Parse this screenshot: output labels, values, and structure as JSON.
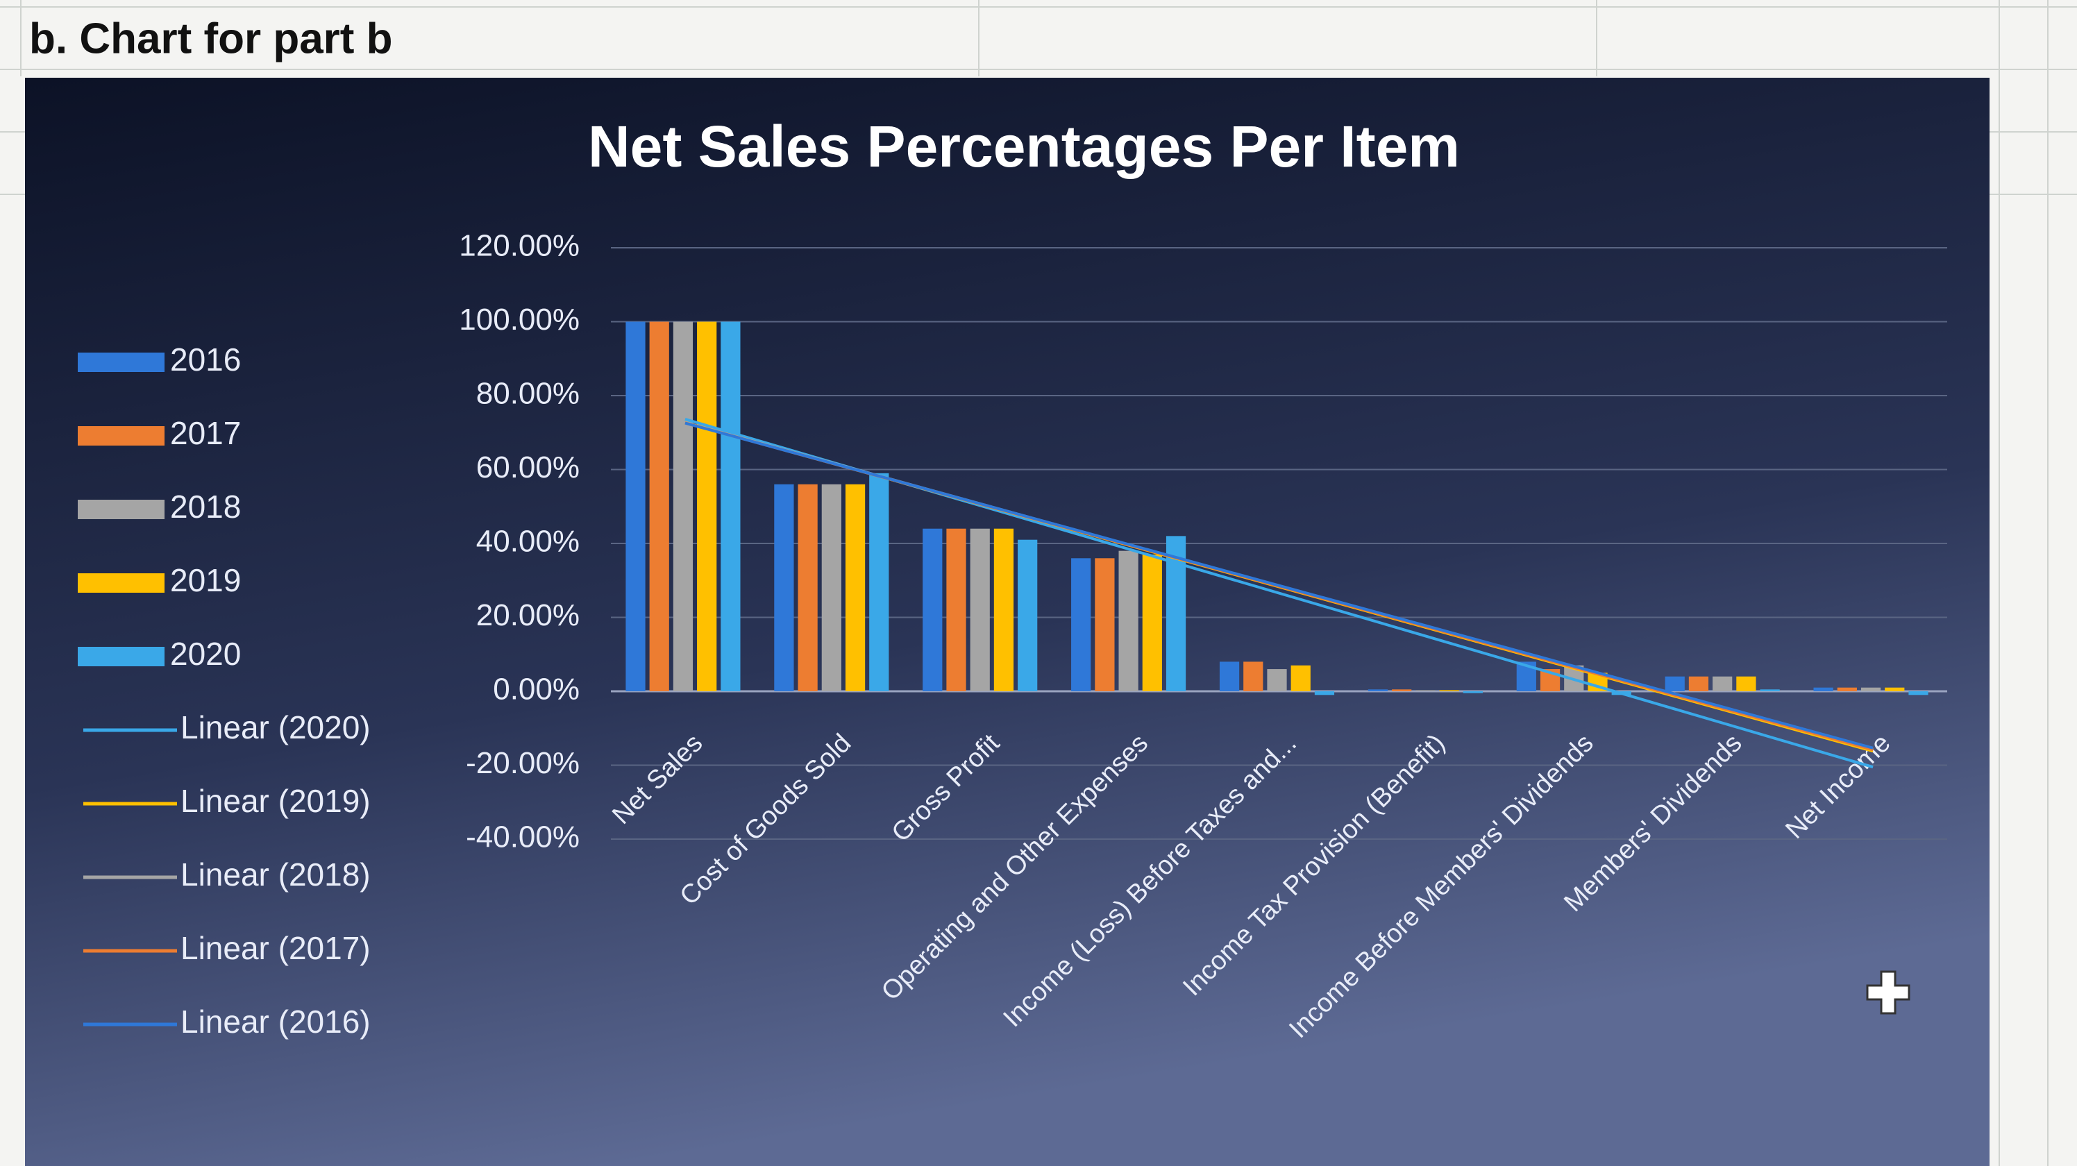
{
  "sheet_title": "b. Chart for part b",
  "chart_data": {
    "type": "bar",
    "title": "Net Sales Percentages Per Item",
    "categories": [
      "Net Sales",
      "Cost of Goods Sold",
      "Gross Profit",
      "Operating and Other Expenses",
      "Income (Loss) Before Taxes and...",
      "Income Tax Provision (Benefit)",
      "Income Before Members' Dividends",
      "Members' Dividends",
      "Net Income"
    ],
    "series": [
      {
        "name": "2016",
        "color": "#2f78d8",
        "values": [
          100,
          56,
          44,
          36,
          8,
          0.5,
          8,
          4,
          1
        ]
      },
      {
        "name": "2017",
        "color": "#ed7d31",
        "values": [
          100,
          56,
          44,
          36,
          8,
          0.5,
          6,
          4,
          1
        ]
      },
      {
        "name": "2018",
        "color": "#a5a5a5",
        "values": [
          100,
          56,
          44,
          38,
          6,
          0.3,
          7,
          4,
          1
        ]
      },
      {
        "name": "2019",
        "color": "#ffc000",
        "values": [
          100,
          56,
          44,
          37,
          7,
          0.3,
          5,
          4,
          1
        ]
      },
      {
        "name": "2020",
        "color": "#3aa8e8",
        "values": [
          100,
          59,
          41,
          42,
          -1,
          -0.5,
          -1,
          0.5,
          -1
        ]
      }
    ],
    "trendlines": [
      {
        "name": "Linear (2020)",
        "series": 4,
        "color": "#3aa8e8"
      },
      {
        "name": "Linear (2019)",
        "series": 3,
        "color": "#ffc000"
      },
      {
        "name": "Linear (2018)",
        "series": 2,
        "color": "#a5a5a5"
      },
      {
        "name": "Linear (2017)",
        "series": 1,
        "color": "#ed7d31"
      },
      {
        "name": "Linear (2016)",
        "series": 0,
        "color": "#2f78d8"
      }
    ],
    "ylim": [
      -40,
      120
    ],
    "yticks": [
      {
        "value": -40,
        "label": "-40.00%"
      },
      {
        "value": -20,
        "label": "-20.00%"
      },
      {
        "value": 0,
        "label": "0.00%"
      },
      {
        "value": 20,
        "label": "20.00%"
      },
      {
        "value": 40,
        "label": "40.00%"
      },
      {
        "value": 60,
        "label": "60.00%"
      },
      {
        "value": 80,
        "label": "80.00%"
      },
      {
        "value": 100,
        "label": "100.00%"
      },
      {
        "value": 120,
        "label": "120.00%"
      }
    ],
    "grid": true,
    "legend": "left"
  }
}
